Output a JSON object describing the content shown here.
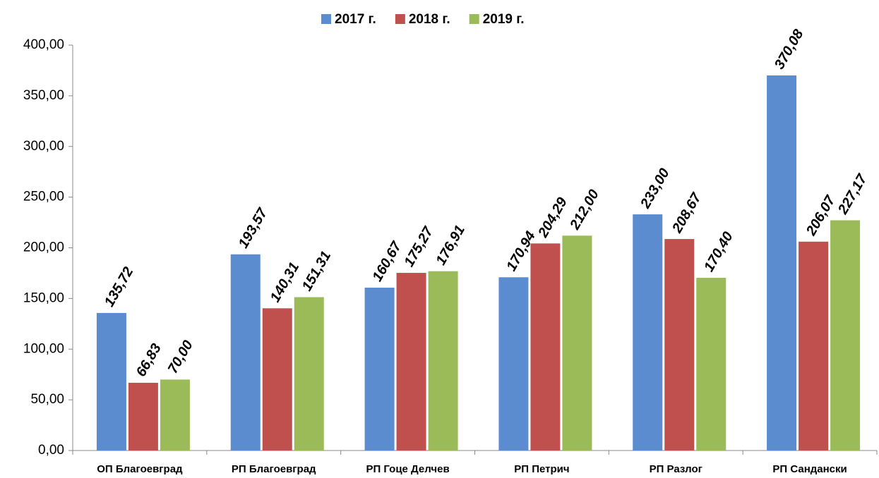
{
  "chart_data": {
    "type": "bar",
    "categories": [
      "ОП Благоевград",
      "РП Благоевград",
      "РП Гоце Делчев",
      "РП Петрич",
      "РП Разлог",
      "РП Сандански"
    ],
    "series": [
      {
        "name": "2017 г.",
        "color": "#5b8cd0",
        "values": [
          135.72,
          193.57,
          160.67,
          170.94,
          233.0,
          370.08
        ],
        "value_labels": [
          "135,72",
          "193,57",
          "160,67",
          "170,94",
          "233,00",
          "370,08"
        ]
      },
      {
        "name": "2018 г.",
        "color": "#c0504d",
        "values": [
          66.83,
          140.31,
          175.27,
          204.29,
          208.67,
          206.07
        ],
        "value_labels": [
          "66,83",
          "140,31",
          "175,27",
          "204,29",
          "208,67",
          "206,07"
        ]
      },
      {
        "name": "2019 г.",
        "color": "#9bbb59",
        "values": [
          70.0,
          151.31,
          176.91,
          212.0,
          170.4,
          227.17
        ],
        "value_labels": [
          "70,00",
          "151,31",
          "176,91",
          "212,00",
          "170,40",
          "227,17"
        ]
      }
    ],
    "ylim": [
      0,
      400
    ],
    "yticks": [
      {
        "value": 0,
        "label": "0,00"
      },
      {
        "value": 50,
        "label": "50,00"
      },
      {
        "value": 100,
        "label": "100,00"
      },
      {
        "value": 150,
        "label": "150,00"
      },
      {
        "value": 200,
        "label": "200,00"
      },
      {
        "value": 250,
        "label": "250,00"
      },
      {
        "value": 300,
        "label": "300,00"
      },
      {
        "value": 350,
        "label": "350,00"
      },
      {
        "value": 400,
        "label": "400,00"
      }
    ],
    "legend": "top"
  }
}
